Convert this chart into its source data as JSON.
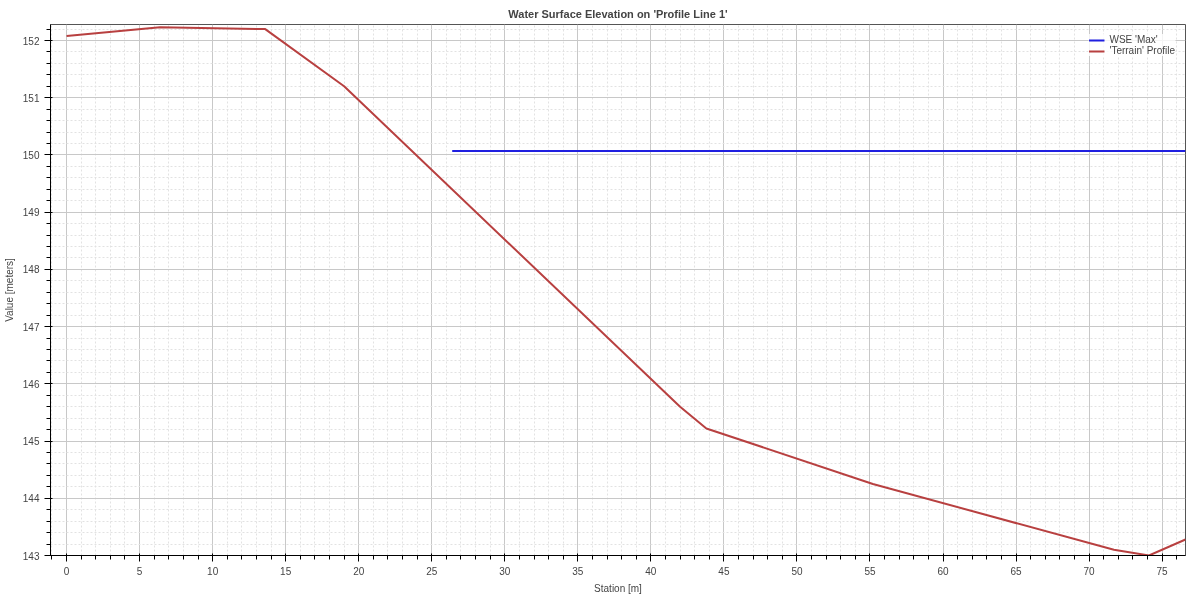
{
  "chart_data": {
    "type": "line",
    "title": "Water Surface Elevation on 'Profile Line 1'",
    "xlabel": "Station [m]",
    "ylabel": "Value [meters]",
    "xlim": [
      -1.1,
      76.6
    ],
    "ylim": [
      143,
      152.28
    ],
    "xticks": [
      0,
      5,
      10,
      15,
      20,
      25,
      30,
      35,
      40,
      45,
      50,
      55,
      60,
      65,
      70,
      75
    ],
    "yticks": [
      143,
      144,
      145,
      146,
      147,
      148,
      149,
      150,
      151,
      152
    ],
    "grid": true,
    "legend": "top right",
    "line_style": "solid",
    "series": [
      {
        "name": "WSE 'Max'",
        "color": "#1f1fe0",
        "x": [
          26.4,
          76.6
        ],
        "values": [
          150.07,
          150.07
        ]
      },
      {
        "name": "'Terrain' Profile",
        "color": "#b84040",
        "x": [
          0,
          6.4,
          13.6,
          19,
          42,
          43.8,
          55.2,
          71.7,
          74.1,
          76.6
        ],
        "values": [
          152.08,
          152.23,
          152.2,
          151.2,
          145.6,
          145.22,
          144.25,
          143.1,
          143.0,
          143.28
        ]
      }
    ]
  }
}
